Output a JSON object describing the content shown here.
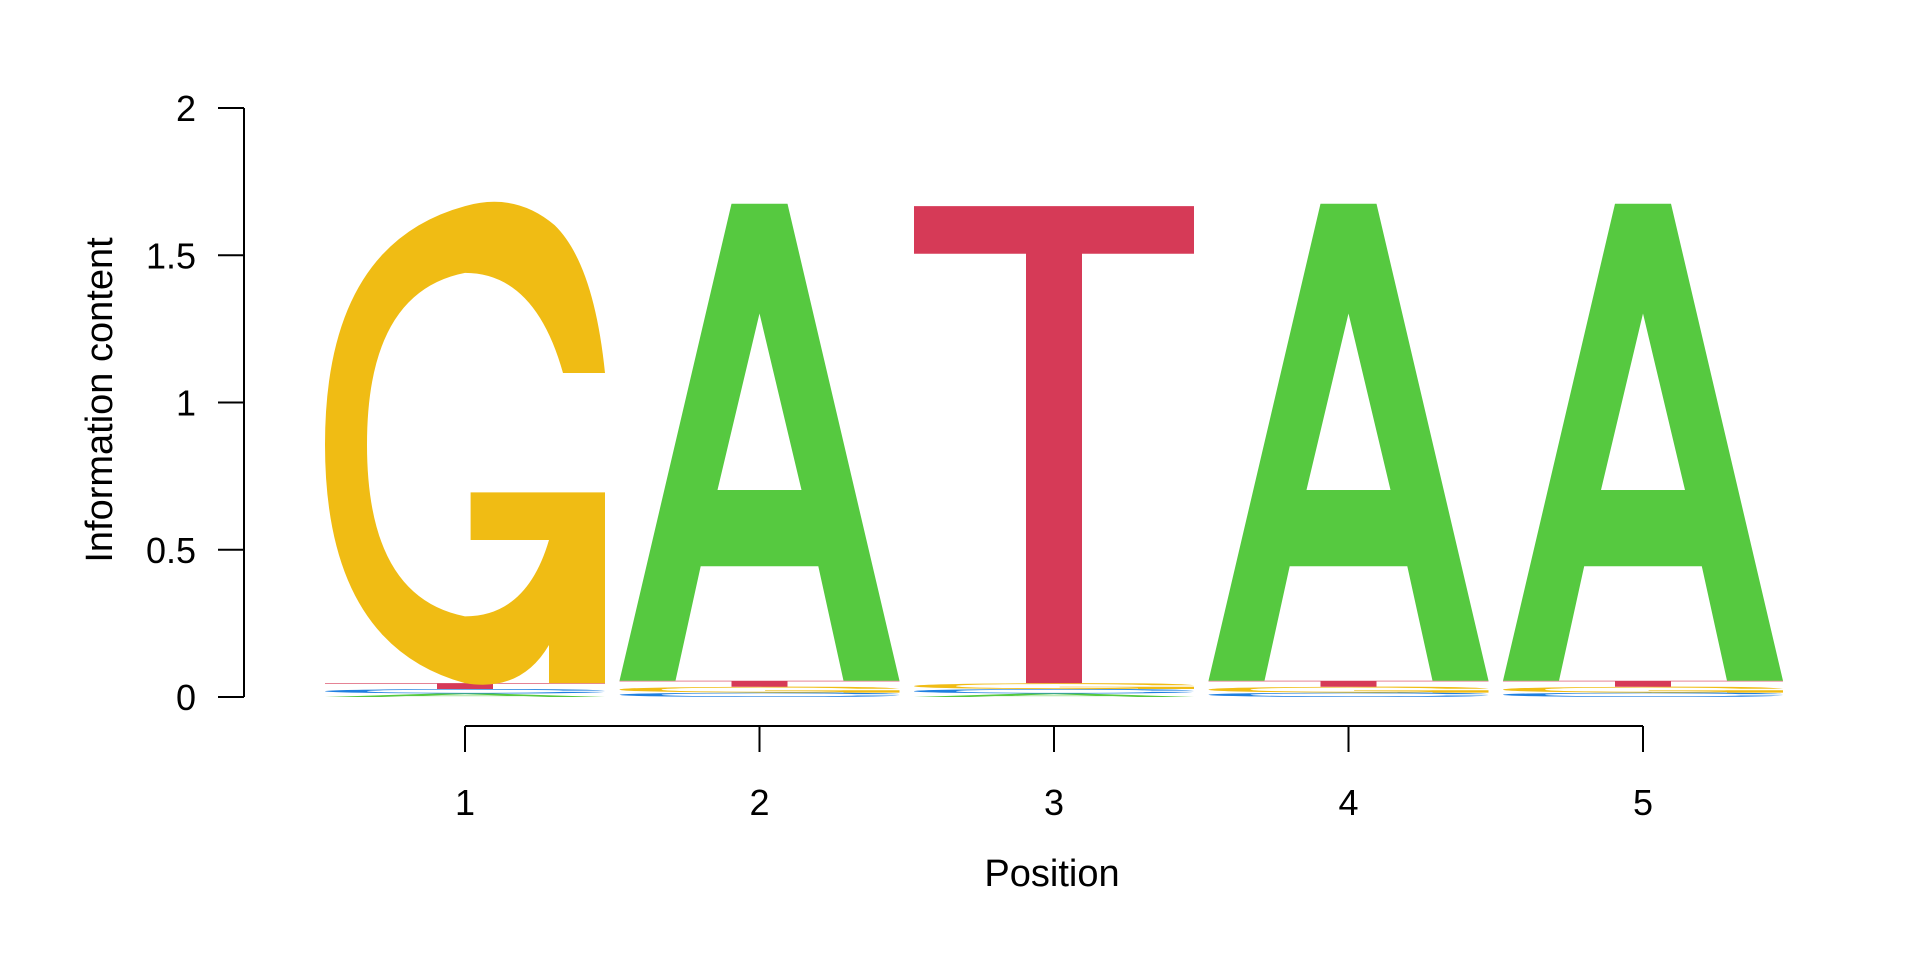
{
  "chart_data": {
    "type": "sequence-logo",
    "xlabel": "Position",
    "ylabel": "Information content",
    "ylim": [
      0,
      2
    ],
    "y_ticks": [
      "0",
      "0.5",
      "1",
      "1.5",
      "2"
    ],
    "y_tick_values": [
      0,
      0.5,
      1,
      1.5,
      2
    ],
    "x_ticks": [
      "1",
      "2",
      "3",
      "4",
      "5"
    ],
    "positions": [
      1,
      2,
      3,
      4,
      5
    ],
    "colors": {
      "A": "#56c940",
      "C": "#1f7fe0",
      "G": "#f0bc14",
      "T": "#d63a57"
    },
    "columns": [
      {
        "position": 1,
        "letters": [
          {
            "letter": "A",
            "height": 0.012
          },
          {
            "letter": "C",
            "height": 0.015
          },
          {
            "letter": "T",
            "height": 0.02
          },
          {
            "letter": "G",
            "height": 1.62
          }
        ]
      },
      {
        "position": 2,
        "letters": [
          {
            "letter": "C",
            "height": 0.015
          },
          {
            "letter": "G",
            "height": 0.02
          },
          {
            "letter": "T",
            "height": 0.02
          },
          {
            "letter": "A",
            "height": 1.62
          }
        ]
      },
      {
        "position": 3,
        "letters": [
          {
            "letter": "A",
            "height": 0.012
          },
          {
            "letter": "C",
            "height": 0.015
          },
          {
            "letter": "G",
            "height": 0.02
          },
          {
            "letter": "T",
            "height": 1.62
          }
        ]
      },
      {
        "position": 4,
        "letters": [
          {
            "letter": "C",
            "height": 0.015
          },
          {
            "letter": "G",
            "height": 0.02
          },
          {
            "letter": "T",
            "height": 0.02
          },
          {
            "letter": "A",
            "height": 1.62
          }
        ]
      },
      {
        "position": 5,
        "letters": [
          {
            "letter": "C",
            "height": 0.015
          },
          {
            "letter": "G",
            "height": 0.02
          },
          {
            "letter": "T",
            "height": 0.02
          },
          {
            "letter": "A",
            "height": 1.62
          }
        ]
      }
    ]
  }
}
